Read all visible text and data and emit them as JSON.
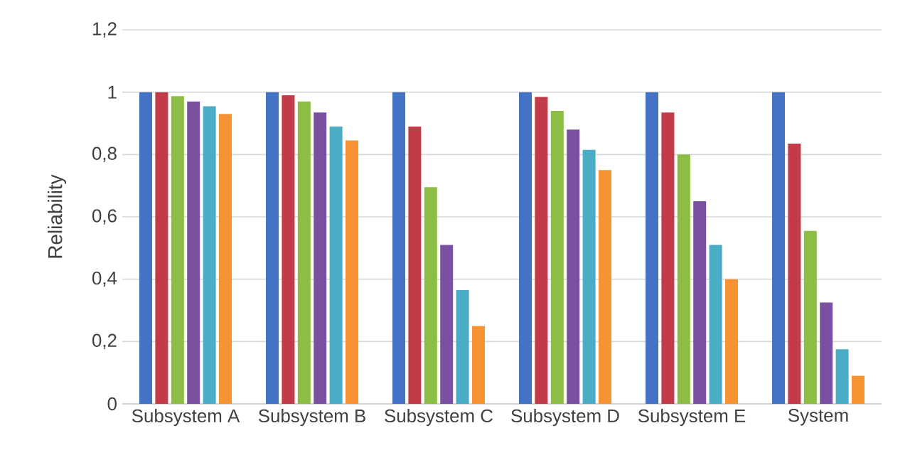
{
  "chart_data": {
    "type": "bar",
    "ylabel": "Reliability",
    "categories": [
      "Subsystem A",
      "Subsystem B",
      "Subsystem C",
      "Subsystem D",
      "Subsystem E",
      "System"
    ],
    "series": [
      {
        "color": "#4472c4",
        "values": [
          1,
          1,
          1,
          1,
          1,
          1
        ]
      },
      {
        "color": "#c13b48",
        "values": [
          1,
          0.99,
          0.89,
          0.985,
          0.935,
          0.835
        ]
      },
      {
        "color": "#8cbd45",
        "values": [
          0.987,
          0.97,
          0.695,
          0.94,
          0.8,
          0.555
        ]
      },
      {
        "color": "#7a51a0",
        "values": [
          0.97,
          0.935,
          0.51,
          0.88,
          0.65,
          0.325
        ]
      },
      {
        "color": "#4bacc6",
        "values": [
          0.955,
          0.89,
          0.365,
          0.815,
          0.51,
          0.175
        ]
      },
      {
        "color": "#f79332",
        "values": [
          0.93,
          0.845,
          0.25,
          0.75,
          0.4,
          0.09
        ]
      }
    ],
    "ylim": [
      0,
      1.2
    ],
    "yticks": [
      0,
      {
        "value": 0.2,
        "label": "0,2"
      },
      {
        "value": 0.4,
        "label": "0,4"
      },
      {
        "value": 0.6,
        "label": "0,6"
      },
      {
        "value": 0.8,
        "label": "0,8"
      },
      1,
      {
        "value": 1.2,
        "label": "1,2"
      }
    ],
    "grid": "y"
  }
}
